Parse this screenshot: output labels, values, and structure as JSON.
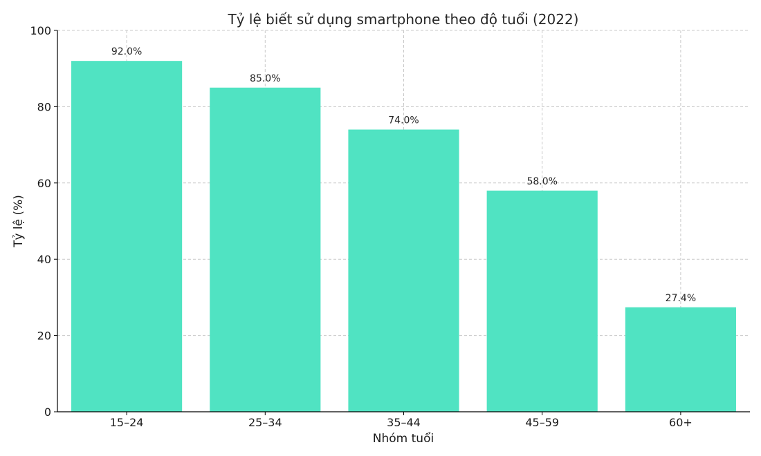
{
  "chart_data": {
    "type": "bar",
    "title": "Tỷ lệ biết sử dụng smartphone theo độ tuổi (2022)",
    "xlabel": "Nhóm tuổi",
    "ylabel": "Tỷ lệ (%)",
    "categories": [
      "15–24",
      "25–34",
      "35–44",
      "45–59",
      "60+"
    ],
    "values": [
      92.0,
      85.0,
      74.0,
      58.0,
      27.4
    ],
    "value_labels": [
      "92.0%",
      "85.0%",
      "74.0%",
      "58.0%",
      "27.4%"
    ],
    "ylim": [
      0,
      100
    ],
    "yticks": [
      0,
      20,
      40,
      60,
      80,
      100
    ],
    "grid": true,
    "bar_color": "#50e3c2"
  }
}
